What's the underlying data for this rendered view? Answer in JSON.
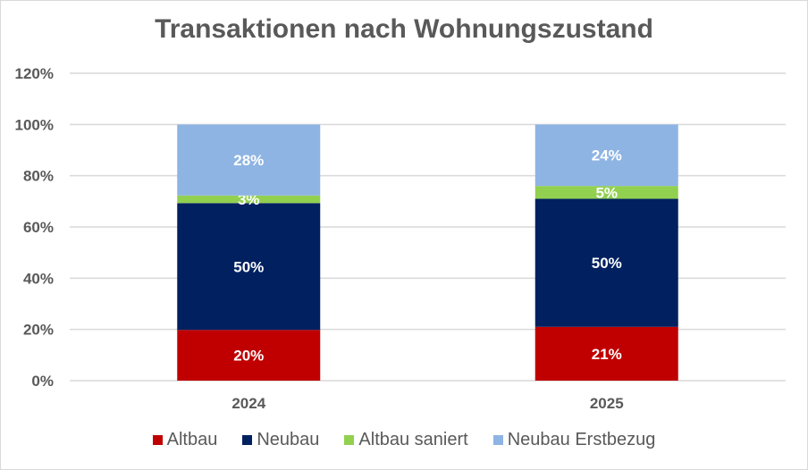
{
  "chart_data": {
    "type": "bar",
    "stacked": true,
    "title": "Transaktionen nach Wohnungszustand",
    "xlabel": "",
    "ylabel": "",
    "ylim": [
      0,
      120
    ],
    "yticks": [
      "0%",
      "20%",
      "40%",
      "60%",
      "80%",
      "100%",
      "120%"
    ],
    "ytick_values": [
      0,
      20,
      40,
      60,
      80,
      100,
      120
    ],
    "grid": true,
    "legend_position": "bottom",
    "categories": [
      "2024",
      "2025"
    ],
    "series": [
      {
        "name": "Altbau",
        "color": "#c00000",
        "values": [
          20,
          21
        ],
        "labels": [
          "20%",
          "21%"
        ]
      },
      {
        "name": "Neubau",
        "color": "#002060",
        "values": [
          50,
          50
        ],
        "labels": [
          "50%",
          "50%"
        ]
      },
      {
        "name": "Altbau saniert",
        "color": "#92d050",
        "values": [
          3,
          5
        ],
        "labels": [
          "3%",
          "5%"
        ]
      },
      {
        "name": "Neubau Erstbezug",
        "color": "#8eb4e3",
        "values": [
          28,
          24
        ],
        "labels": [
          "28%",
          "24%"
        ]
      }
    ]
  }
}
